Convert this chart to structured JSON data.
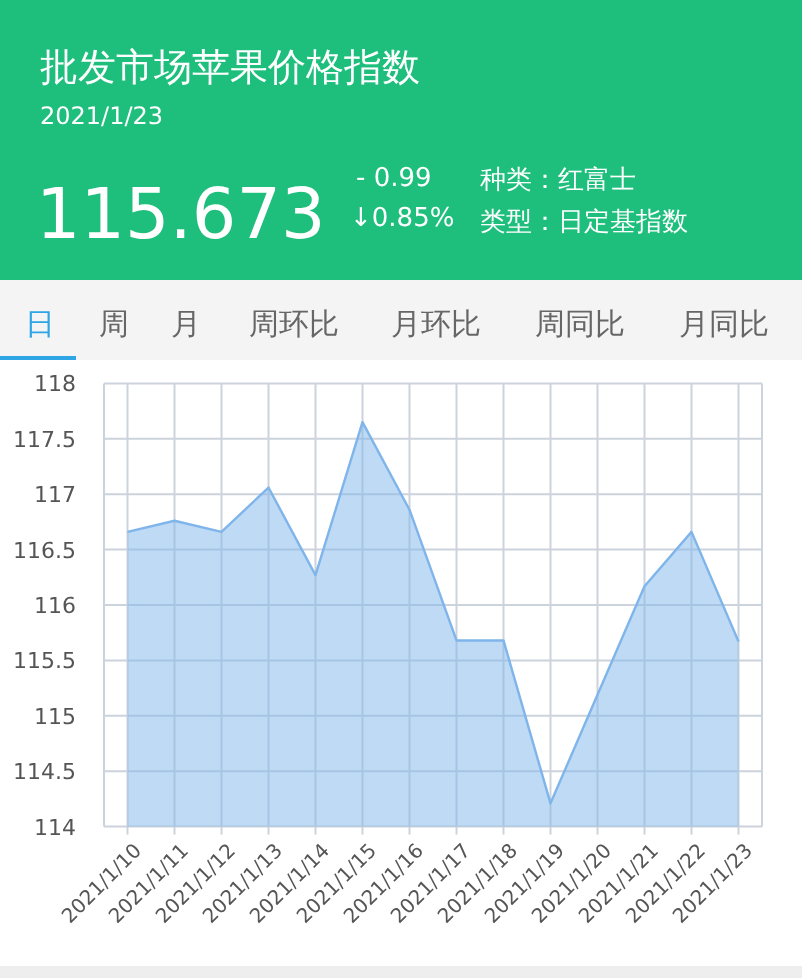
{
  "chart_data": {
    "type": "area",
    "title": "批发市场苹果价格指数",
    "subtitle": "2021/1/23",
    "annotations": [
      "115.673",
      "- 0.99",
      "↓0.85%",
      "种类：红富士",
      "类型：日定基指数",
      "日",
      "周",
      "月",
      "周环比",
      "月环比",
      "周同比",
      "月同比"
    ],
    "categories": [
      "2021/1/10",
      "2021/1/11",
      "2021/1/12",
      "2021/1/13",
      "2021/1/14",
      "2021/1/15",
      "2021/1/16",
      "2021/1/17",
      "2021/1/18",
      "2021/1/19",
      "2021/1/20",
      "2021/1/21",
      "2021/1/22",
      "2021/1/23"
    ],
    "series": [
      {
        "color": "#7fb5ea",
        "values": [
          116.66,
          116.76,
          116.66,
          117.06,
          116.27,
          117.65,
          116.86,
          115.68,
          115.68,
          114.21,
          115.19,
          116.17,
          116.66,
          115.67
        ]
      }
    ],
    "ylim": [
      114,
      118
    ],
    "yticks": [
      114,
      114.5,
      115,
      115.5,
      116,
      116.5,
      117,
      117.5,
      118
    ],
    "grid": true
  }
}
